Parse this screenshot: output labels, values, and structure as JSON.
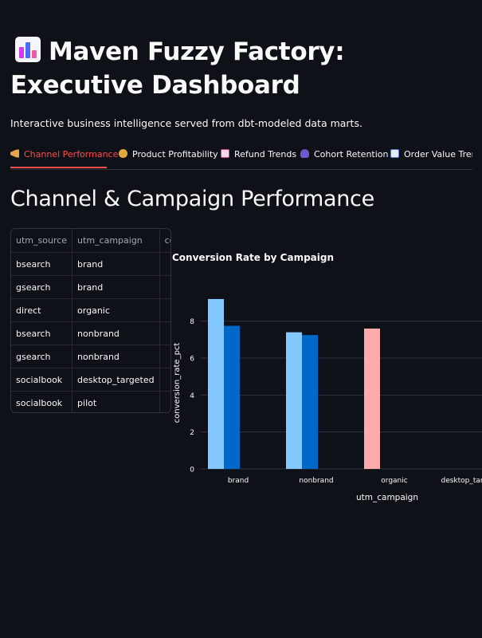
{
  "app": {
    "title": "Maven Fuzzy Factory: Executive Dashboard",
    "title_icon": "bar-chart-icon",
    "subtitle": "Interactive business intelligence served from dbt-modeled data marts."
  },
  "tabs": [
    {
      "label": "Channel Performance",
      "icon": "megaphone-icon",
      "active": true
    },
    {
      "label": "Product Profitability",
      "icon": "money-bag-icon",
      "active": false
    },
    {
      "label": "Refund Trends",
      "icon": "chart-down-icon",
      "active": false
    },
    {
      "label": "Cohort Retention",
      "icon": "people-icon",
      "active": false
    },
    {
      "label": "Order Value Trend",
      "icon": "chart-up-icon",
      "active": false
    }
  ],
  "section": {
    "title": "Channel & Campaign Performance"
  },
  "table": {
    "columns": [
      "utm_source",
      "utm_campaign",
      "conversion_rate_pct"
    ],
    "rows": [
      [
        "bsearch",
        "brand",
        ""
      ],
      [
        "gsearch",
        "brand",
        ""
      ],
      [
        "direct",
        "organic",
        ""
      ],
      [
        "bsearch",
        "nonbrand",
        ""
      ],
      [
        "gsearch",
        "nonbrand",
        ""
      ],
      [
        "socialbook",
        "desktop_targeted",
        ""
      ],
      [
        "socialbook",
        "pilot",
        ""
      ]
    ]
  },
  "chart_data": {
    "type": "bar",
    "title": "Conversion Rate by Campaign",
    "xlabel": "utm_campaign",
    "ylabel": "conversion_rate_pct",
    "categories": [
      "brand",
      "nonbrand",
      "organic",
      "desktop_targeted"
    ],
    "ylim": [
      0,
      9.5
    ],
    "yticks": [
      0,
      2,
      4,
      6,
      8
    ],
    "grid": true,
    "series": [
      {
        "color": "#83c9ff",
        "values": [
          9.2,
          7.4,
          null,
          null
        ]
      },
      {
        "color": "#0068c9",
        "values": [
          7.75,
          7.25,
          null,
          null
        ]
      },
      {
        "color": "#ffabab",
        "values": [
          null,
          null,
          7.6,
          null
        ]
      }
    ]
  }
}
